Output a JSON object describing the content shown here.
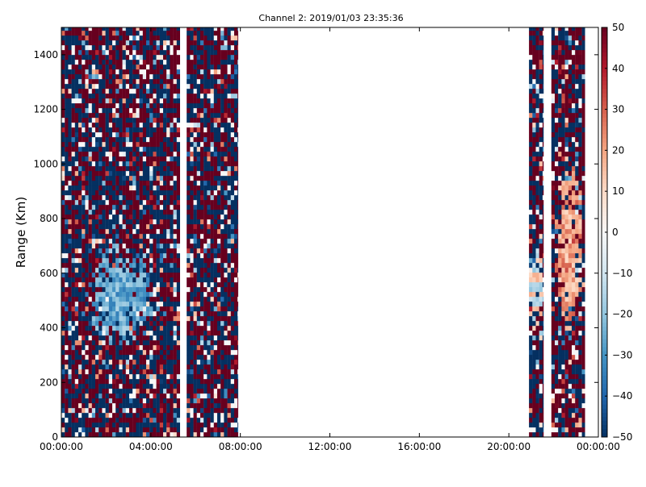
{
  "chart_data": {
    "type": "heatmap",
    "title": "Channel 2: 2019/01/03 23:35:36",
    "xlabel": "",
    "ylabel": "Range (Km)",
    "x_ticks": [
      "00:00:00",
      "04:00:00",
      "08:00:00",
      "12:00:00",
      "16:00:00",
      "20:00:00",
      "00:00:00"
    ],
    "x_range_hours": [
      0,
      24
    ],
    "y_ticks": [
      0,
      200,
      400,
      600,
      800,
      1000,
      1200,
      1400
    ],
    "ylim": [
      0,
      1500
    ],
    "colorbar": {
      "colormap": "RdBu_r",
      "min": -50,
      "max": 50,
      "ticks": [
        -50,
        -40,
        -30,
        -20,
        -10,
        0,
        10,
        20,
        30,
        40,
        50
      ],
      "colors": [
        "#053061",
        "#2166ac",
        "#4393c3",
        "#92c5de",
        "#d1e5f0",
        "#f7f7f7",
        "#fddbc7",
        "#f4a582",
        "#d6604d",
        "#b2182b",
        "#67001f"
      ]
    },
    "grid": false,
    "data_segments_hours": [
      {
        "start": 0.0,
        "end": 5.3
      },
      {
        "start": 5.6,
        "end": 7.9
      },
      {
        "start": 20.9,
        "end": 21.55
      },
      {
        "start": 21.9,
        "end": 23.4
      }
    ],
    "features": [
      {
        "description": "negative-velocity (blue) region",
        "x_hours": [
          1.2,
          4.0
        ],
        "y_km": [
          330,
          720
        ],
        "value_approx": -25
      },
      {
        "description": "positive-velocity (red) region",
        "x_hours": [
          22.0,
          23.3
        ],
        "y_km": [
          380,
          1000
        ],
        "value_approx": 20
      },
      {
        "description": "alternating blue/red band",
        "x_hours": [
          20.9,
          21.55
        ],
        "y_km": [
          380,
          700
        ],
        "value_approx": -20
      }
    ]
  }
}
